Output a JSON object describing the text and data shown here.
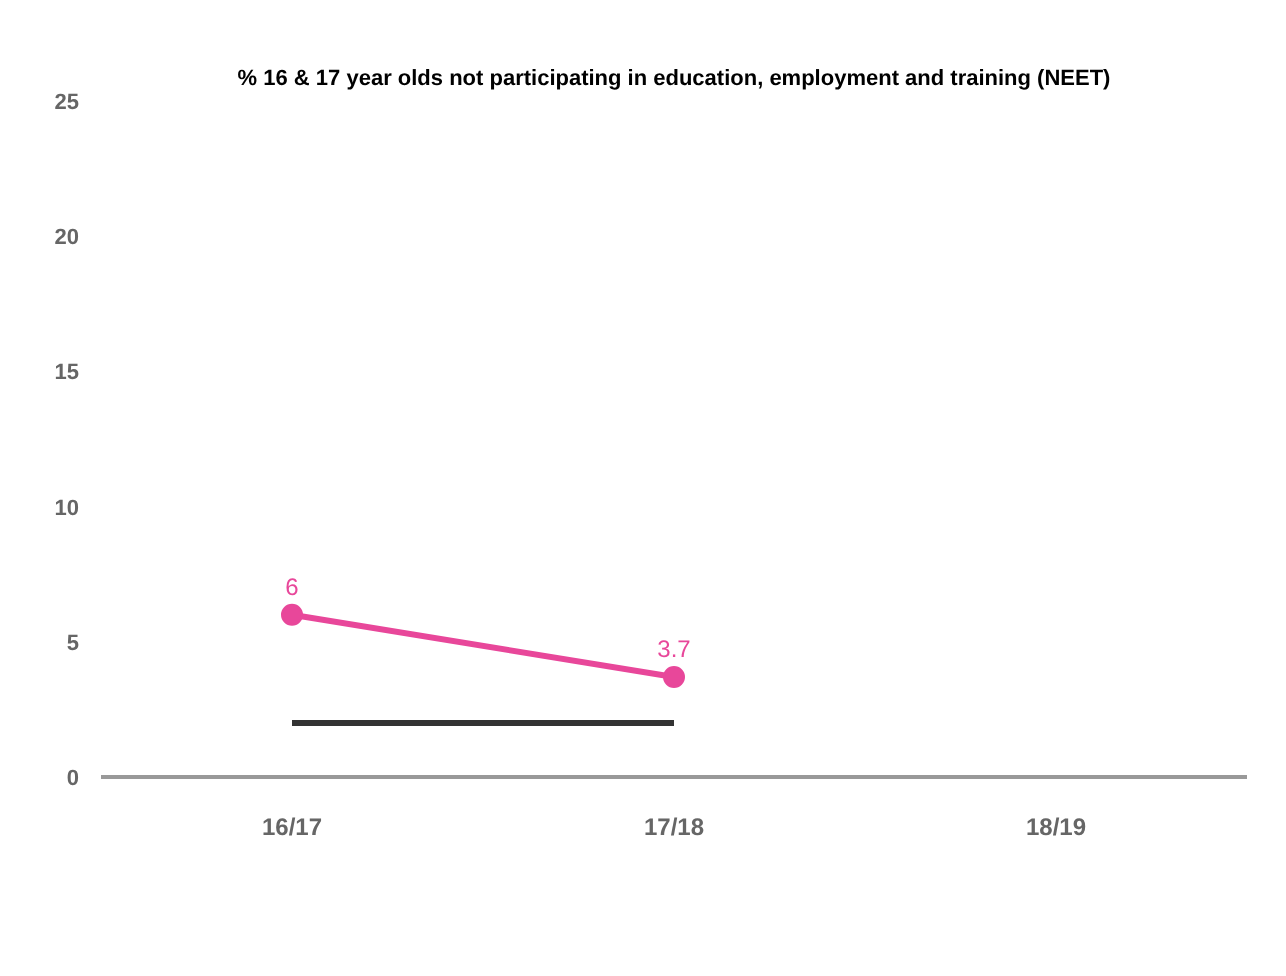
{
  "chart_data": {
    "type": "line",
    "title": "% 16 & 17 year olds not participating in education, employment and training (NEET)",
    "categories": [
      "16/17",
      "17/18",
      "18/19"
    ],
    "series": [
      {
        "color": "#e8479a",
        "values": [
          6,
          3.7,
          null
        ],
        "marker": "circle",
        "value_labels": [
          "6",
          "3.7",
          null
        ]
      },
      {
        "color": "#333333",
        "values": [
          2,
          2,
          null
        ],
        "marker": "none"
      }
    ],
    "ylim": [
      0,
      25
    ],
    "yticks": [
      0,
      5,
      10,
      15,
      20,
      25
    ],
    "grid": false
  }
}
